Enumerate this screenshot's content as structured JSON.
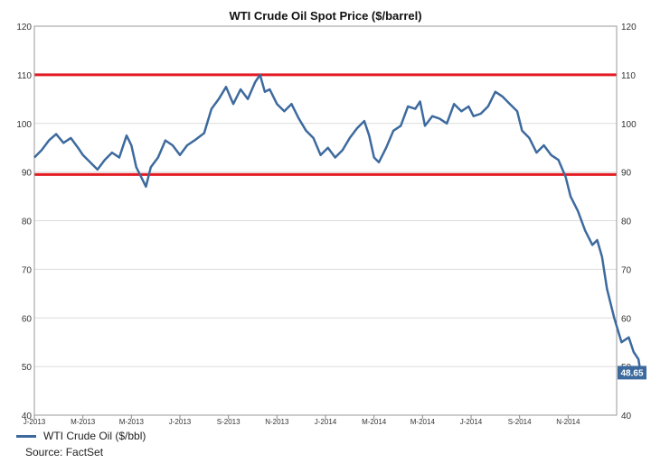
{
  "chart_data": {
    "type": "line",
    "title": "WTI Crude Oil Spot Price ($/barrel)",
    "xlabel": "",
    "ylabel": "",
    "ylim": [
      40,
      120
    ],
    "yticks": [
      40,
      50,
      60,
      70,
      80,
      90,
      100,
      110,
      120
    ],
    "xticks": [
      "J-2013",
      "M-2013",
      "M-2013",
      "J-2013",
      "S-2013",
      "N-2013",
      "J-2014",
      "M-2014",
      "M-2014",
      "J-2014",
      "S-2014",
      "N-2014"
    ],
    "grid": true,
    "legend_position": "bottom-left",
    "reference_lines": [
      {
        "value": 110,
        "color": "#e31b23"
      },
      {
        "value": 89.5,
        "color": "#e31b23"
      }
    ],
    "last_value_label": "48.65",
    "series": [
      {
        "name": "WTI Crude Oil ($/bbl)",
        "color": "#3d6a9e",
        "points": [
          [
            0.0,
            93.0
          ],
          [
            0.15,
            94.5
          ],
          [
            0.3,
            96.5
          ],
          [
            0.45,
            97.8
          ],
          [
            0.6,
            96.0
          ],
          [
            0.75,
            97.0
          ],
          [
            0.9,
            95.0
          ],
          [
            1.0,
            93.5
          ],
          [
            1.15,
            92.0
          ],
          [
            1.3,
            90.5
          ],
          [
            1.45,
            92.5
          ],
          [
            1.6,
            94.0
          ],
          [
            1.75,
            93.0
          ],
          [
            1.9,
            97.5
          ],
          [
            2.0,
            95.5
          ],
          [
            2.1,
            91.0
          ],
          [
            2.2,
            89.0
          ],
          [
            2.3,
            87.0
          ],
          [
            2.4,
            91.0
          ],
          [
            2.55,
            93.0
          ],
          [
            2.7,
            96.5
          ],
          [
            2.85,
            95.5
          ],
          [
            3.0,
            93.5
          ],
          [
            3.15,
            95.5
          ],
          [
            3.3,
            96.5
          ],
          [
            3.5,
            98.0
          ],
          [
            3.65,
            103.0
          ],
          [
            3.8,
            105.0
          ],
          [
            3.95,
            107.5
          ],
          [
            4.1,
            104.0
          ],
          [
            4.25,
            107.0
          ],
          [
            4.4,
            105.0
          ],
          [
            4.55,
            108.5
          ],
          [
            4.65,
            110.0
          ],
          [
            4.75,
            106.5
          ],
          [
            4.85,
            107.0
          ],
          [
            5.0,
            104.0
          ],
          [
            5.15,
            102.5
          ],
          [
            5.3,
            104.0
          ],
          [
            5.45,
            101.0
          ],
          [
            5.6,
            98.5
          ],
          [
            5.75,
            97.0
          ],
          [
            5.9,
            93.5
          ],
          [
            6.05,
            95.0
          ],
          [
            6.2,
            93.0
          ],
          [
            6.35,
            94.5
          ],
          [
            6.5,
            97.0
          ],
          [
            6.65,
            99.0
          ],
          [
            6.8,
            100.5
          ],
          [
            6.9,
            97.5
          ],
          [
            7.0,
            93.0
          ],
          [
            7.1,
            92.0
          ],
          [
            7.25,
            95.0
          ],
          [
            7.4,
            98.5
          ],
          [
            7.55,
            99.5
          ],
          [
            7.7,
            103.5
          ],
          [
            7.85,
            103.0
          ],
          [
            7.95,
            104.5
          ],
          [
            8.05,
            99.5
          ],
          [
            8.2,
            101.5
          ],
          [
            8.35,
            101.0
          ],
          [
            8.5,
            100.0
          ],
          [
            8.65,
            104.0
          ],
          [
            8.8,
            102.5
          ],
          [
            8.95,
            103.5
          ],
          [
            9.05,
            101.5
          ],
          [
            9.2,
            102.0
          ],
          [
            9.35,
            103.5
          ],
          [
            9.5,
            106.5
          ],
          [
            9.65,
            105.5
          ],
          [
            9.8,
            104.0
          ],
          [
            9.95,
            102.5
          ],
          [
            10.05,
            98.5
          ],
          [
            10.2,
            97.0
          ],
          [
            10.35,
            94.0
          ],
          [
            10.5,
            95.5
          ],
          [
            10.65,
            93.5
          ],
          [
            10.8,
            92.5
          ],
          [
            10.95,
            89.0
          ],
          [
            11.05,
            85.0
          ],
          [
            11.2,
            82.0
          ],
          [
            11.35,
            78.0
          ],
          [
            11.5,
            75.0
          ],
          [
            11.6,
            76.0
          ],
          [
            11.7,
            72.5
          ],
          [
            11.8,
            66.0
          ],
          [
            11.95,
            60.0
          ],
          [
            12.1,
            55.0
          ],
          [
            12.25,
            56.0
          ],
          [
            12.35,
            53.0
          ],
          [
            12.45,
            51.5
          ],
          [
            12.5,
            48.5
          ],
          [
            12.55,
            48.65
          ]
        ]
      }
    ]
  },
  "legend": {
    "label": "WTI Crude Oil ($/bbl)"
  },
  "source": {
    "label": "Source: FactSet"
  }
}
